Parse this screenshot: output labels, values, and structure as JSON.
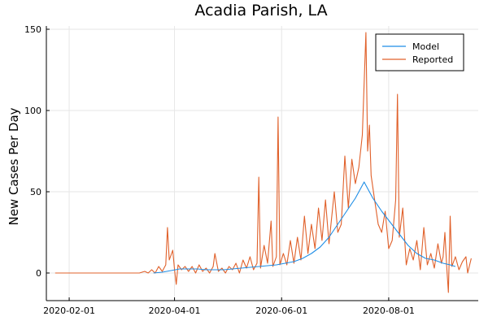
{
  "chart_data": {
    "type": "line",
    "title": "Acadia Parish, LA",
    "xlabel": "",
    "ylabel": "New Cases Per Day",
    "x_axis_type": "date",
    "xlim": [
      "2020-01-19",
      "2020-09-21"
    ],
    "ylim": [
      -17,
      152
    ],
    "x_ticks": [
      "2020-02-01",
      "2020-04-01",
      "2020-06-01",
      "2020-08-01"
    ],
    "y_ticks": [
      0,
      50,
      100,
      150
    ],
    "grid": true,
    "legend": {
      "placement": "top-right"
    },
    "colors": {
      "Model": "#1f8ee6",
      "Reported": "#e0602a"
    },
    "series": [
      {
        "name": "Model",
        "points": [
          [
            "2020-03-20",
            0
          ],
          [
            "2020-03-25",
            0.5
          ],
          [
            "2020-03-30",
            1.5
          ],
          [
            "2020-04-04",
            2.5
          ],
          [
            "2020-04-09",
            2.5
          ],
          [
            "2020-04-14",
            2.5
          ],
          [
            "2020-04-19",
            2
          ],
          [
            "2020-04-24",
            2
          ],
          [
            "2020-04-29",
            2
          ],
          [
            "2020-05-04",
            2.5
          ],
          [
            "2020-05-09",
            3
          ],
          [
            "2020-05-14",
            3.5
          ],
          [
            "2020-05-19",
            4
          ],
          [
            "2020-05-24",
            4.5
          ],
          [
            "2020-05-29",
            5
          ],
          [
            "2020-06-03",
            6
          ],
          [
            "2020-06-08",
            7
          ],
          [
            "2020-06-13",
            9
          ],
          [
            "2020-06-18",
            12
          ],
          [
            "2020-06-23",
            16
          ],
          [
            "2020-06-28",
            22
          ],
          [
            "2020-07-03",
            30
          ],
          [
            "2020-07-08",
            38
          ],
          [
            "2020-07-13",
            46
          ],
          [
            "2020-07-16",
            52
          ],
          [
            "2020-07-18",
            56
          ],
          [
            "2020-07-20",
            52
          ],
          [
            "2020-07-23",
            46
          ],
          [
            "2020-07-28",
            38
          ],
          [
            "2020-08-02",
            31
          ],
          [
            "2020-08-07",
            24
          ],
          [
            "2020-08-12",
            17
          ],
          [
            "2020-08-17",
            12
          ],
          [
            "2020-08-22",
            9
          ],
          [
            "2020-08-27",
            8
          ],
          [
            "2020-09-01",
            6
          ],
          [
            "2020-09-05",
            5
          ],
          [
            "2020-09-08",
            4
          ]
        ]
      },
      {
        "name": "Reported",
        "points": [
          [
            "2020-01-24",
            0
          ],
          [
            "2020-03-12",
            0
          ],
          [
            "2020-03-15",
            1
          ],
          [
            "2020-03-17",
            0
          ],
          [
            "2020-03-19",
            2
          ],
          [
            "2020-03-21",
            0
          ],
          [
            "2020-03-23",
            4
          ],
          [
            "2020-03-25",
            1
          ],
          [
            "2020-03-27",
            5
          ],
          [
            "2020-03-28",
            28
          ],
          [
            "2020-03-29",
            8
          ],
          [
            "2020-03-31",
            14
          ],
          [
            "2020-04-01",
            2
          ],
          [
            "2020-04-02",
            -7
          ],
          [
            "2020-04-03",
            5
          ],
          [
            "2020-04-05",
            2
          ],
          [
            "2020-04-07",
            4
          ],
          [
            "2020-04-09",
            1
          ],
          [
            "2020-04-11",
            4
          ],
          [
            "2020-04-13",
            0
          ],
          [
            "2020-04-15",
            5
          ],
          [
            "2020-04-17",
            1
          ],
          [
            "2020-04-19",
            3
          ],
          [
            "2020-04-21",
            0
          ],
          [
            "2020-04-23",
            4
          ],
          [
            "2020-04-24",
            12
          ],
          [
            "2020-04-26",
            1
          ],
          [
            "2020-04-28",
            3
          ],
          [
            "2020-04-30",
            0
          ],
          [
            "2020-05-02",
            4
          ],
          [
            "2020-05-04",
            2
          ],
          [
            "2020-05-06",
            6
          ],
          [
            "2020-05-08",
            0
          ],
          [
            "2020-05-10",
            8
          ],
          [
            "2020-05-12",
            3
          ],
          [
            "2020-05-14",
            10
          ],
          [
            "2020-05-16",
            2
          ],
          [
            "2020-05-18",
            6
          ],
          [
            "2020-05-19",
            59
          ],
          [
            "2020-05-20",
            3
          ],
          [
            "2020-05-22",
            17
          ],
          [
            "2020-05-24",
            6
          ],
          [
            "2020-05-26",
            32
          ],
          [
            "2020-05-27",
            4
          ],
          [
            "2020-05-29",
            10
          ],
          [
            "2020-05-30",
            96
          ],
          [
            "2020-05-31",
            5
          ],
          [
            "2020-06-02",
            12
          ],
          [
            "2020-06-04",
            5
          ],
          [
            "2020-06-06",
            20
          ],
          [
            "2020-06-08",
            6
          ],
          [
            "2020-06-10",
            22
          ],
          [
            "2020-06-12",
            8
          ],
          [
            "2020-06-14",
            35
          ],
          [
            "2020-06-16",
            12
          ],
          [
            "2020-06-18",
            30
          ],
          [
            "2020-06-20",
            15
          ],
          [
            "2020-06-22",
            40
          ],
          [
            "2020-06-24",
            20
          ],
          [
            "2020-06-26",
            45
          ],
          [
            "2020-06-28",
            18
          ],
          [
            "2020-07-01",
            50
          ],
          [
            "2020-07-03",
            25
          ],
          [
            "2020-07-05",
            30
          ],
          [
            "2020-07-07",
            72
          ],
          [
            "2020-07-09",
            40
          ],
          [
            "2020-07-11",
            70
          ],
          [
            "2020-07-13",
            55
          ],
          [
            "2020-07-15",
            65
          ],
          [
            "2020-07-17",
            85
          ],
          [
            "2020-07-19",
            148
          ],
          [
            "2020-07-20",
            75
          ],
          [
            "2020-07-21",
            91
          ],
          [
            "2020-07-22",
            60
          ],
          [
            "2020-07-24",
            45
          ],
          [
            "2020-07-26",
            30
          ],
          [
            "2020-07-28",
            25
          ],
          [
            "2020-07-30",
            38
          ],
          [
            "2020-08-01",
            15
          ],
          [
            "2020-08-03",
            20
          ],
          [
            "2020-08-05",
            45
          ],
          [
            "2020-08-06",
            110
          ],
          [
            "2020-08-07",
            22
          ],
          [
            "2020-08-09",
            40
          ],
          [
            "2020-08-11",
            5
          ],
          [
            "2020-08-13",
            15
          ],
          [
            "2020-08-15",
            8
          ],
          [
            "2020-08-17",
            20
          ],
          [
            "2020-08-19",
            2
          ],
          [
            "2020-08-21",
            28
          ],
          [
            "2020-08-23",
            5
          ],
          [
            "2020-08-25",
            12
          ],
          [
            "2020-08-27",
            3
          ],
          [
            "2020-08-29",
            18
          ],
          [
            "2020-08-31",
            6
          ],
          [
            "2020-09-01",
            10
          ],
          [
            "2020-09-02",
            25
          ],
          [
            "2020-09-03",
            5
          ],
          [
            "2020-09-04",
            -12
          ],
          [
            "2020-09-05",
            35
          ],
          [
            "2020-09-06",
            4
          ],
          [
            "2020-09-08",
            10
          ],
          [
            "2020-09-10",
            2
          ],
          [
            "2020-09-12",
            7
          ],
          [
            "2020-09-14",
            10
          ],
          [
            "2020-09-15",
            0
          ],
          [
            "2020-09-17",
            9
          ]
        ]
      }
    ]
  }
}
